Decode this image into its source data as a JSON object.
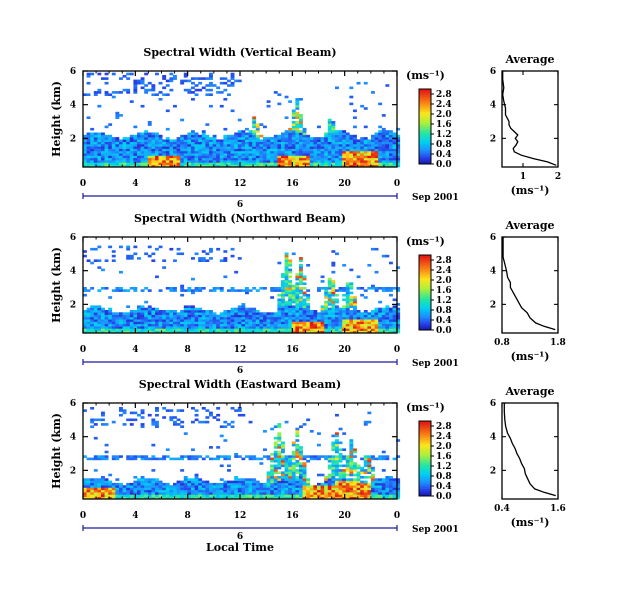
{
  "figure": {
    "xlabel": "Local Time",
    "date_label": "Sep 2001",
    "colorbar_unit": "(ms⁻¹)",
    "avg_title": "Average",
    "avg_xlabel": "(ms⁻¹)"
  },
  "chart_data": [
    {
      "type": "heatmap",
      "title": "Spectral Width (Vertical Beam)",
      "ylabel": "Height (km)",
      "xlabel": "",
      "x_ticks": [
        "0",
        "4",
        "8",
        "12",
        "16",
        "20",
        "0"
      ],
      "xlim": [
        0,
        24
      ],
      "y_ticks": [
        "2",
        "4",
        "6"
      ],
      "ylim": [
        0.3,
        6
      ],
      "day_marker": "6",
      "colorbar": {
        "ticks": [
          "0.0",
          "0.4",
          "0.8",
          "1.2",
          "1.6",
          "2.0",
          "2.4",
          "2.8"
        ],
        "range": [
          0,
          3.0
        ]
      },
      "average_profile": {
        "title": "Average",
        "xlim": [
          0.4,
          2.0
        ],
        "x_ticks": [
          "1",
          "2"
        ],
        "ylim": [
          0.3,
          6
        ],
        "y_ticks": [
          "2",
          "4",
          "6"
        ],
        "points": [
          [
            1.95,
            0.4
          ],
          [
            1.7,
            0.6
          ],
          [
            1.3,
            0.8
          ],
          [
            0.95,
            1.0
          ],
          [
            0.75,
            1.2
          ],
          [
            0.72,
            1.4
          ],
          [
            0.8,
            1.6
          ],
          [
            0.85,
            1.8
          ],
          [
            0.78,
            2.0
          ],
          [
            0.85,
            2.2
          ],
          [
            0.75,
            2.4
          ],
          [
            0.65,
            2.6
          ],
          [
            0.6,
            2.8
          ],
          [
            0.6,
            3.0
          ],
          [
            0.5,
            3.4
          ],
          [
            0.5,
            3.8
          ],
          [
            0.45,
            4.2
          ],
          [
            0.42,
            4.6
          ],
          [
            0.45,
            5.0
          ],
          [
            0.42,
            5.5
          ],
          [
            0.42,
            6.0
          ]
        ]
      }
    },
    {
      "type": "heatmap",
      "title": "Spectral Width (Northward Beam)",
      "ylabel": "Height (km)",
      "xlabel": "",
      "x_ticks": [
        "0",
        "4",
        "8",
        "12",
        "16",
        "20",
        "0"
      ],
      "xlim": [
        0,
        24
      ],
      "y_ticks": [
        "2",
        "4",
        "6"
      ],
      "ylim": [
        0.3,
        6
      ],
      "day_marker": "6",
      "colorbar": {
        "ticks": [
          "0.0",
          "0.4",
          "0.8",
          "1.2",
          "1.6",
          "2.0",
          "2.4",
          "2.8"
        ],
        "range": [
          0,
          3.0
        ]
      },
      "average_profile": {
        "title": "Average",
        "xlim": [
          0.8,
          1.8
        ],
        "x_ticks": [
          "0.8",
          "1.8"
        ],
        "ylim": [
          0.3,
          6
        ],
        "y_ticks": [
          "2",
          "4",
          "6"
        ],
        "points": [
          [
            1.75,
            0.5
          ],
          [
            1.55,
            0.7
          ],
          [
            1.4,
            0.9
          ],
          [
            1.3,
            1.2
          ],
          [
            1.25,
            1.5
          ],
          [
            1.15,
            1.8
          ],
          [
            1.1,
            2.1
          ],
          [
            1.05,
            2.4
          ],
          [
            1.0,
            2.7
          ],
          [
            0.95,
            3.0
          ],
          [
            0.95,
            3.3
          ],
          [
            0.9,
            3.6
          ],
          [
            0.88,
            4.0
          ],
          [
            0.85,
            4.4
          ],
          [
            0.82,
            4.8
          ],
          [
            0.82,
            5.2
          ],
          [
            0.82,
            5.6
          ],
          [
            0.82,
            6.0
          ]
        ]
      }
    },
    {
      "type": "heatmap",
      "title": "Spectral Width (Eastward Beam)",
      "ylabel": "Height (km)",
      "xlabel": "Local Time",
      "x_ticks": [
        "0",
        "4",
        "8",
        "12",
        "16",
        "20",
        "0"
      ],
      "xlim": [
        0,
        24
      ],
      "y_ticks": [
        "2",
        "4",
        "6"
      ],
      "ylim": [
        0.3,
        6
      ],
      "day_marker": "6",
      "colorbar": {
        "ticks": [
          "0.0",
          "0.4",
          "0.8",
          "1.2",
          "1.6",
          "2.0",
          "2.4",
          "2.8"
        ],
        "range": [
          0,
          3.0
        ]
      },
      "average_profile": {
        "title": "Average",
        "xlim": [
          0.4,
          1.6
        ],
        "x_ticks": [
          "0.4",
          "1.6"
        ],
        "ylim": [
          0.3,
          6
        ],
        "y_ticks": [
          "2",
          "4",
          "6"
        ],
        "points": [
          [
            1.55,
            0.5
          ],
          [
            1.3,
            0.7
          ],
          [
            1.1,
            0.9
          ],
          [
            1.0,
            1.2
          ],
          [
            0.95,
            1.5
          ],
          [
            0.9,
            1.8
          ],
          [
            0.88,
            2.1
          ],
          [
            0.82,
            2.4
          ],
          [
            0.78,
            2.7
          ],
          [
            0.72,
            3.0
          ],
          [
            0.68,
            3.3
          ],
          [
            0.62,
            3.6
          ],
          [
            0.58,
            3.9
          ],
          [
            0.52,
            4.2
          ],
          [
            0.48,
            4.6
          ],
          [
            0.46,
            5.0
          ],
          [
            0.45,
            5.5
          ],
          [
            0.45,
            6.0
          ]
        ]
      }
    }
  ]
}
